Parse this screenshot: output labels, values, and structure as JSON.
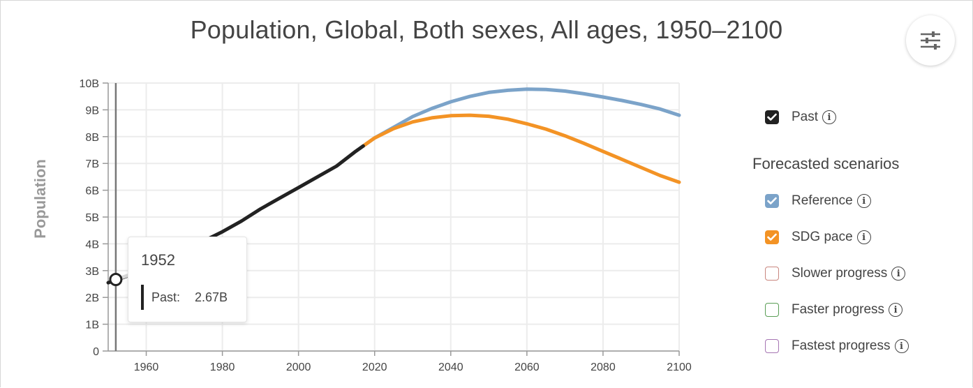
{
  "title": "Population, Global, Both sexes, All ages, 1950–2100",
  "settings_icon": "sliders-icon",
  "chart_data": {
    "type": "line",
    "title": "Population, Global, Both sexes, All ages, 1950–2100",
    "ylabel": "Population",
    "xlim": [
      1950,
      2100
    ],
    "ylim": [
      0,
      10
    ],
    "x_ticks": [
      1960,
      1980,
      2000,
      2020,
      2040,
      2060,
      2080,
      2100
    ],
    "y_ticks": [
      "0",
      "1B",
      "2B",
      "3B",
      "4B",
      "5B",
      "6B",
      "7B",
      "8B",
      "9B",
      "10B"
    ],
    "y_tick_values": [
      0,
      1,
      2,
      3,
      4,
      5,
      6,
      7,
      8,
      9,
      10
    ],
    "y_unit": "billions",
    "grid": true,
    "series": [
      {
        "name": "Past",
        "color": "#222222",
        "x": [
          1950,
          1955,
          1960,
          1965,
          1970,
          1975,
          1980,
          1985,
          1990,
          1995,
          2000,
          2005,
          2010,
          2015,
          2017
        ],
        "values": [
          2.55,
          2.8,
          3.05,
          3.35,
          3.7,
          4.1,
          4.45,
          4.85,
          5.3,
          5.7,
          6.1,
          6.5,
          6.9,
          7.45,
          7.65
        ]
      },
      {
        "name": "Reference",
        "color": "#7ba3c9",
        "x": [
          2017,
          2020,
          2025,
          2030,
          2035,
          2040,
          2045,
          2050,
          2055,
          2060,
          2065,
          2070,
          2075,
          2080,
          2085,
          2090,
          2095,
          2100
        ],
        "values": [
          7.65,
          7.95,
          8.35,
          8.75,
          9.05,
          9.3,
          9.5,
          9.65,
          9.73,
          9.77,
          9.76,
          9.7,
          9.6,
          9.48,
          9.35,
          9.2,
          9.03,
          8.8
        ]
      },
      {
        "name": "SDG pace",
        "color": "#f39325",
        "x": [
          2017,
          2020,
          2025,
          2030,
          2035,
          2040,
          2045,
          2050,
          2055,
          2060,
          2065,
          2070,
          2075,
          2080,
          2085,
          2090,
          2095,
          2100
        ],
        "values": [
          7.65,
          7.95,
          8.3,
          8.55,
          8.7,
          8.78,
          8.8,
          8.76,
          8.65,
          8.48,
          8.28,
          8.03,
          7.75,
          7.45,
          7.15,
          6.85,
          6.55,
          6.3
        ]
      }
    ],
    "highlight": {
      "year": "1952",
      "label": "Past:",
      "value": "2.67B",
      "x": 1952,
      "y": 2.67
    }
  },
  "legend": {
    "past": {
      "label": "Past",
      "checked": true,
      "color": "#222222"
    },
    "heading": "Forecasted scenarios",
    "scenarios": [
      {
        "label": "Reference",
        "checked": true,
        "color": "#7ba3c9"
      },
      {
        "label": "SDG pace",
        "checked": true,
        "color": "#f39325"
      },
      {
        "label": "Slower progress",
        "checked": false,
        "color": "#c9867e"
      },
      {
        "label": "Faster progress",
        "checked": false,
        "color": "#5a9e56"
      },
      {
        "label": "Fastest progress",
        "checked": false,
        "color": "#a675b3"
      }
    ],
    "info_icon": "info-icon"
  }
}
